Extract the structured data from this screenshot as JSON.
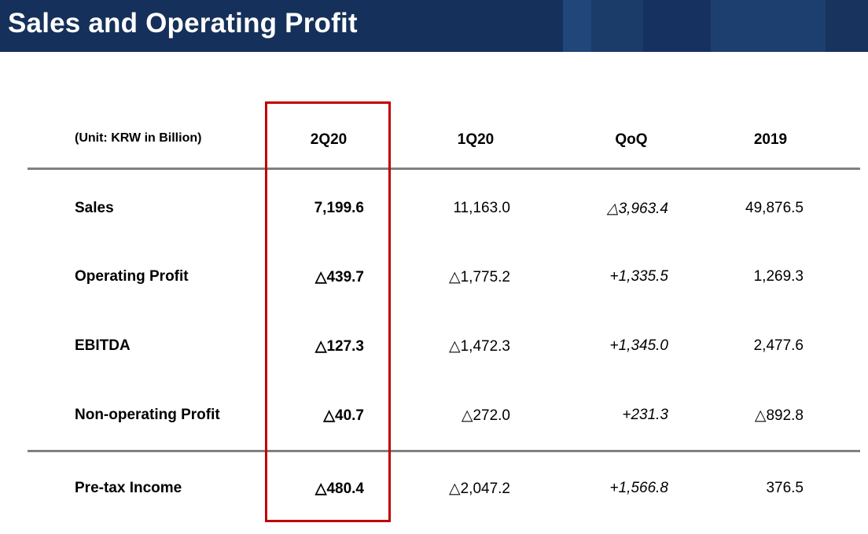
{
  "title": "Sales and Operating Profit",
  "unit_note": "(Unit: KRW in Billion)",
  "columns": [
    "2Q20",
    "1Q20",
    "QoQ",
    "2019"
  ],
  "rows": [
    {
      "label": "Sales",
      "values": [
        "7,199.6",
        "11,163.0",
        "△3,963.4",
        "49,876.5"
      ]
    },
    {
      "label": "Operating Profit",
      "values": [
        "△439.7",
        "△1,775.2",
        "+1,335.5",
        "1,269.3"
      ]
    },
    {
      "label": "EBITDA",
      "values": [
        "△127.3",
        "△1,472.3",
        "+1,345.0",
        "2,477.6"
      ]
    },
    {
      "label": "Non-operating Profit",
      "values": [
        "△40.7",
        "△272.0",
        "+231.3",
        "△892.8"
      ]
    },
    {
      "label": "Pre-tax Income",
      "values": [
        "△480.4",
        "△2,047.2",
        "+1,566.8",
        "376.5"
      ]
    }
  ],
  "colors": {
    "header_bg": "#15305a",
    "highlight": "#c00000",
    "rule": "#808080"
  }
}
